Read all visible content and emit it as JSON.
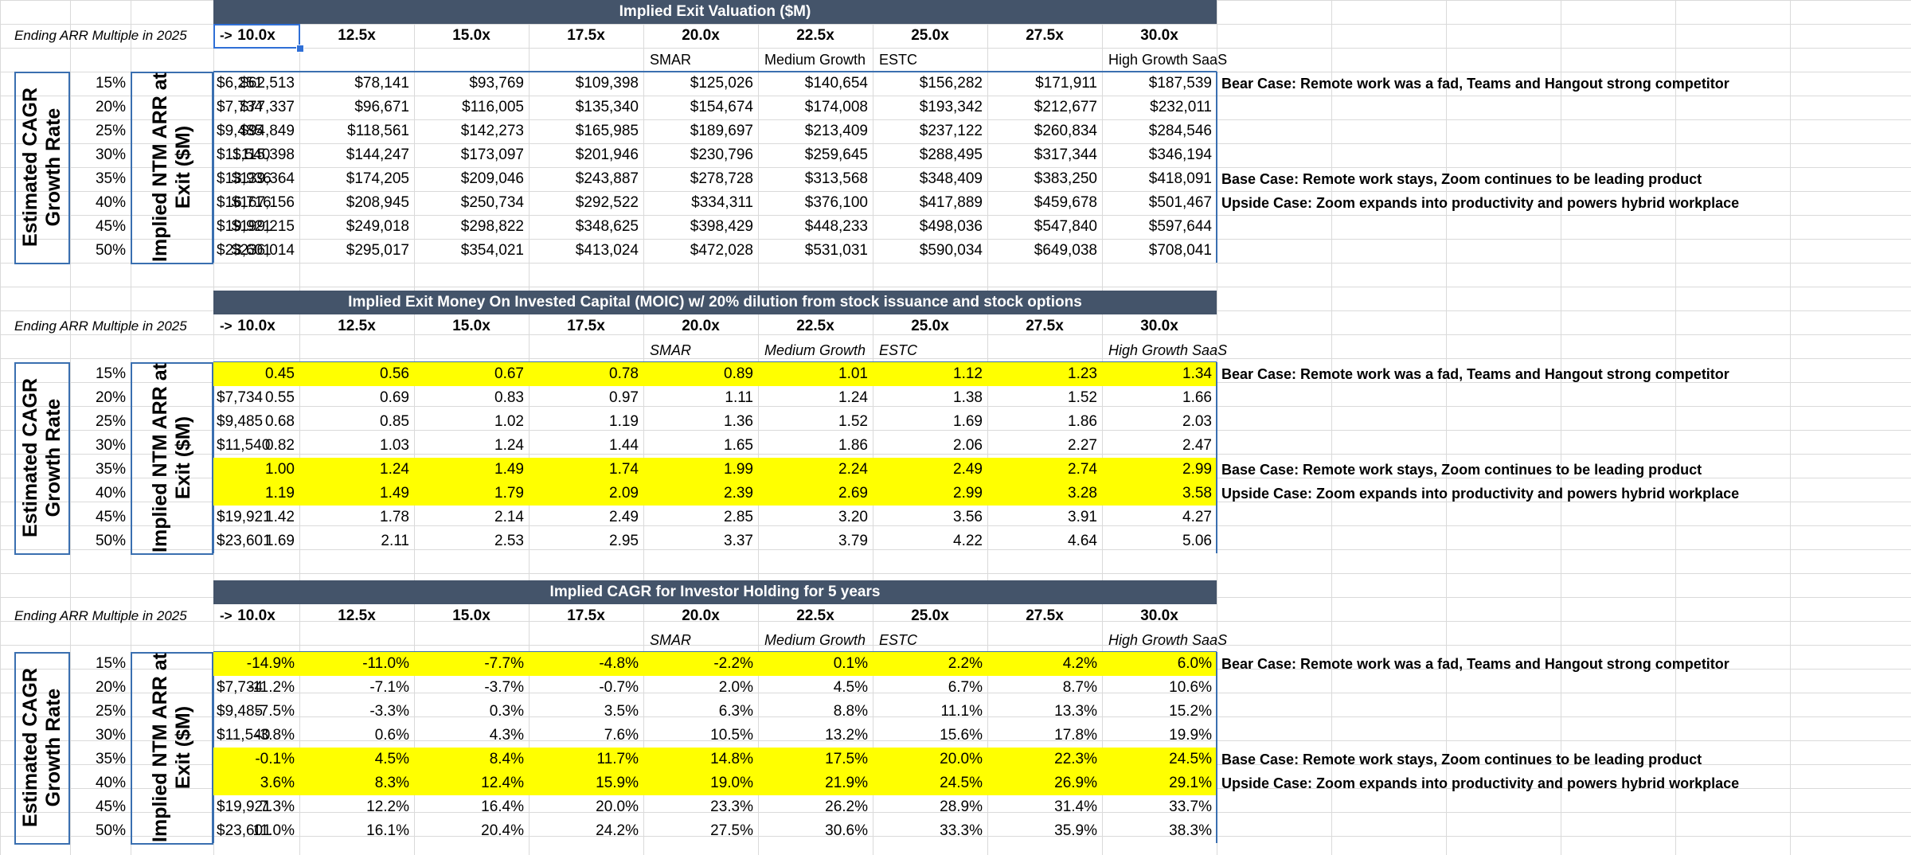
{
  "multiple_label": "Ending ARR Multiple in 2025",
  "arrow": "->",
  "multiples": [
    "10.0x",
    "12.5x",
    "15.0x",
    "17.5x",
    "20.0x",
    "22.5x",
    "25.0x",
    "27.5x",
    "30.0x"
  ],
  "comp_labels": [
    {
      "col": 4,
      "text": "SMAR"
    },
    {
      "col": 5,
      "text": "Medium Growth"
    },
    {
      "col": 6,
      "text": "ESTC"
    },
    {
      "col": 8,
      "text": "High Growth SaaS"
    }
  ],
  "growth_label": "Estimated CAGR\nGrowth Rate",
  "arr_label": "Implied NTM ARR at\nExit ($M)",
  "growth_rates": [
    "15%",
    "20%",
    "25%",
    "30%",
    "35%",
    "40%",
    "45%",
    "50%"
  ],
  "ntm_arr": [
    "$6,251",
    "$7,734",
    "$9,485",
    "$11,540",
    "$13,936",
    "$16,716",
    "$19,921",
    "$23,601"
  ],
  "cases": [
    {
      "row": 0,
      "text": "Bear Case: Remote work was a fad, Teams and Hangout strong competitor"
    },
    {
      "row": 4,
      "text": "Base Case: Remote work stays, Zoom continues to be leading product"
    },
    {
      "row": 5,
      "text": "Upside Case: Zoom expands into productivity and powers hybrid workplace"
    }
  ],
  "highlight_color": "#ffff00",
  "header_color": "#44546a",
  "tables": [
    {
      "title": "Implied Exit Valuation ($M)",
      "highlight_rows": [],
      "rows": [
        [
          "$62,513",
          "$78,141",
          "$93,769",
          "$109,398",
          "$125,026",
          "$140,654",
          "$156,282",
          "$171,911",
          "$187,539"
        ],
        [
          "$77,337",
          "$96,671",
          "$116,005",
          "$135,340",
          "$154,674",
          "$174,008",
          "$193,342",
          "$212,677",
          "$232,011"
        ],
        [
          "$94,849",
          "$118,561",
          "$142,273",
          "$165,985",
          "$189,697",
          "$213,409",
          "$237,122",
          "$260,834",
          "$284,546"
        ],
        [
          "$115,398",
          "$144,247",
          "$173,097",
          "$201,946",
          "$230,796",
          "$259,645",
          "$288,495",
          "$317,344",
          "$346,194"
        ],
        [
          "$139,364",
          "$174,205",
          "$209,046",
          "$243,887",
          "$278,728",
          "$313,568",
          "$348,409",
          "$383,250",
          "$418,091"
        ],
        [
          "$167,156",
          "$208,945",
          "$250,734",
          "$292,522",
          "$334,311",
          "$376,100",
          "$417,889",
          "$459,678",
          "$501,467"
        ],
        [
          "$199,215",
          "$249,018",
          "$298,822",
          "$348,625",
          "$398,429",
          "$448,233",
          "$498,036",
          "$547,840",
          "$597,644"
        ],
        [
          "$236,014",
          "$295,017",
          "$354,021",
          "$413,024",
          "$472,028",
          "$531,031",
          "$590,034",
          "$649,038",
          "$708,041"
        ]
      ]
    },
    {
      "title": "Implied Exit Money On Invested Capital (MOIC) w/ 20% dilution from stock issuance and stock options",
      "highlight_rows": [
        0,
        4,
        5
      ],
      "rows": [
        [
          "0.45",
          "0.56",
          "0.67",
          "0.78",
          "0.89",
          "1.01",
          "1.12",
          "1.23",
          "1.34"
        ],
        [
          "0.55",
          "0.69",
          "0.83",
          "0.97",
          "1.11",
          "1.24",
          "1.38",
          "1.52",
          "1.66"
        ],
        [
          "0.68",
          "0.85",
          "1.02",
          "1.19",
          "1.36",
          "1.52",
          "1.69",
          "1.86",
          "2.03"
        ],
        [
          "0.82",
          "1.03",
          "1.24",
          "1.44",
          "1.65",
          "1.86",
          "2.06",
          "2.27",
          "2.47"
        ],
        [
          "1.00",
          "1.24",
          "1.49",
          "1.74",
          "1.99",
          "2.24",
          "2.49",
          "2.74",
          "2.99"
        ],
        [
          "1.19",
          "1.49",
          "1.79",
          "2.09",
          "2.39",
          "2.69",
          "2.99",
          "3.28",
          "3.58"
        ],
        [
          "1.42",
          "1.78",
          "2.14",
          "2.49",
          "2.85",
          "3.20",
          "3.56",
          "3.91",
          "4.27"
        ],
        [
          "1.69",
          "2.11",
          "2.53",
          "2.95",
          "3.37",
          "3.79",
          "4.22",
          "4.64",
          "5.06"
        ]
      ]
    },
    {
      "title": "Implied CAGR for Investor Holding for 5 years",
      "highlight_rows": [
        0,
        4,
        5
      ],
      "rows": [
        [
          "-14.9%",
          "-11.0%",
          "-7.7%",
          "-4.8%",
          "-2.2%",
          "0.1%",
          "2.2%",
          "4.2%",
          "6.0%"
        ],
        [
          "-11.2%",
          "-7.1%",
          "-3.7%",
          "-0.7%",
          "2.0%",
          "4.5%",
          "6.7%",
          "8.7%",
          "10.6%"
        ],
        [
          "-7.5%",
          "-3.3%",
          "0.3%",
          "3.5%",
          "6.3%",
          "8.8%",
          "11.1%",
          "13.3%",
          "15.2%"
        ],
        [
          "-3.8%",
          "0.6%",
          "4.3%",
          "7.6%",
          "10.5%",
          "13.2%",
          "15.6%",
          "17.8%",
          "19.9%"
        ],
        [
          "-0.1%",
          "4.5%",
          "8.4%",
          "11.7%",
          "14.8%",
          "17.5%",
          "20.0%",
          "22.3%",
          "24.5%"
        ],
        [
          "3.6%",
          "8.3%",
          "12.4%",
          "15.9%",
          "19.0%",
          "21.9%",
          "24.5%",
          "26.9%",
          "29.1%"
        ],
        [
          "7.3%",
          "12.2%",
          "16.4%",
          "20.0%",
          "23.3%",
          "26.2%",
          "28.9%",
          "31.4%",
          "33.7%"
        ],
        [
          "11.0%",
          "16.1%",
          "20.4%",
          "24.2%",
          "27.5%",
          "30.6%",
          "33.3%",
          "35.9%",
          "38.3%"
        ]
      ]
    }
  ]
}
